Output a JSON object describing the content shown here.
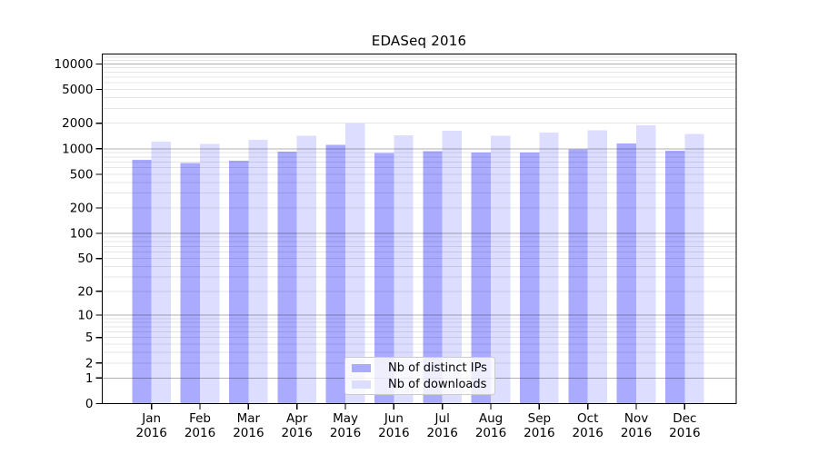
{
  "chart_data": {
    "type": "bar",
    "title": "EDASeq 2016",
    "categories": [
      {
        "label": "Jan",
        "year": "2016"
      },
      {
        "label": "Feb",
        "year": "2016"
      },
      {
        "label": "Mar",
        "year": "2016"
      },
      {
        "label": "Apr",
        "year": "2016"
      },
      {
        "label": "May",
        "year": "2016"
      },
      {
        "label": "Jun",
        "year": "2016"
      },
      {
        "label": "Jul",
        "year": "2016"
      },
      {
        "label": "Aug",
        "year": "2016"
      },
      {
        "label": "Sep",
        "year": "2016"
      },
      {
        "label": "Oct",
        "year": "2016"
      },
      {
        "label": "Nov",
        "year": "2016"
      },
      {
        "label": "Dec",
        "year": "2016"
      }
    ],
    "series": [
      {
        "name": "Nb of distinct IPs",
        "color": "#aaaaff",
        "values": [
          740,
          680,
          720,
          930,
          1110,
          890,
          940,
          905,
          900,
          985,
          1160,
          950
        ]
      },
      {
        "name": "Nb of downloads",
        "color": "#ddddff",
        "values": [
          1220,
          1140,
          1280,
          1430,
          1990,
          1440,
          1640,
          1430,
          1560,
          1660,
          1890,
          1500
        ]
      }
    ],
    "y_axis": {
      "scale": "log10(value+1)",
      "ticks": [
        10000,
        5000,
        2000,
        1000,
        500,
        200,
        100,
        50,
        20,
        10,
        5,
        2,
        1,
        0
      ],
      "range_max": 13000
    },
    "grid": {
      "major_decades": [
        1,
        10,
        100,
        1000,
        10000
      ],
      "minor": true
    },
    "legend_position": "bottom-center-inside",
    "colors": {
      "axis": "#000000",
      "major_grid": "rgba(0,0,0,0.30)",
      "minor_grid": "rgba(0,0,0,0.10)",
      "text": "#000000"
    }
  }
}
